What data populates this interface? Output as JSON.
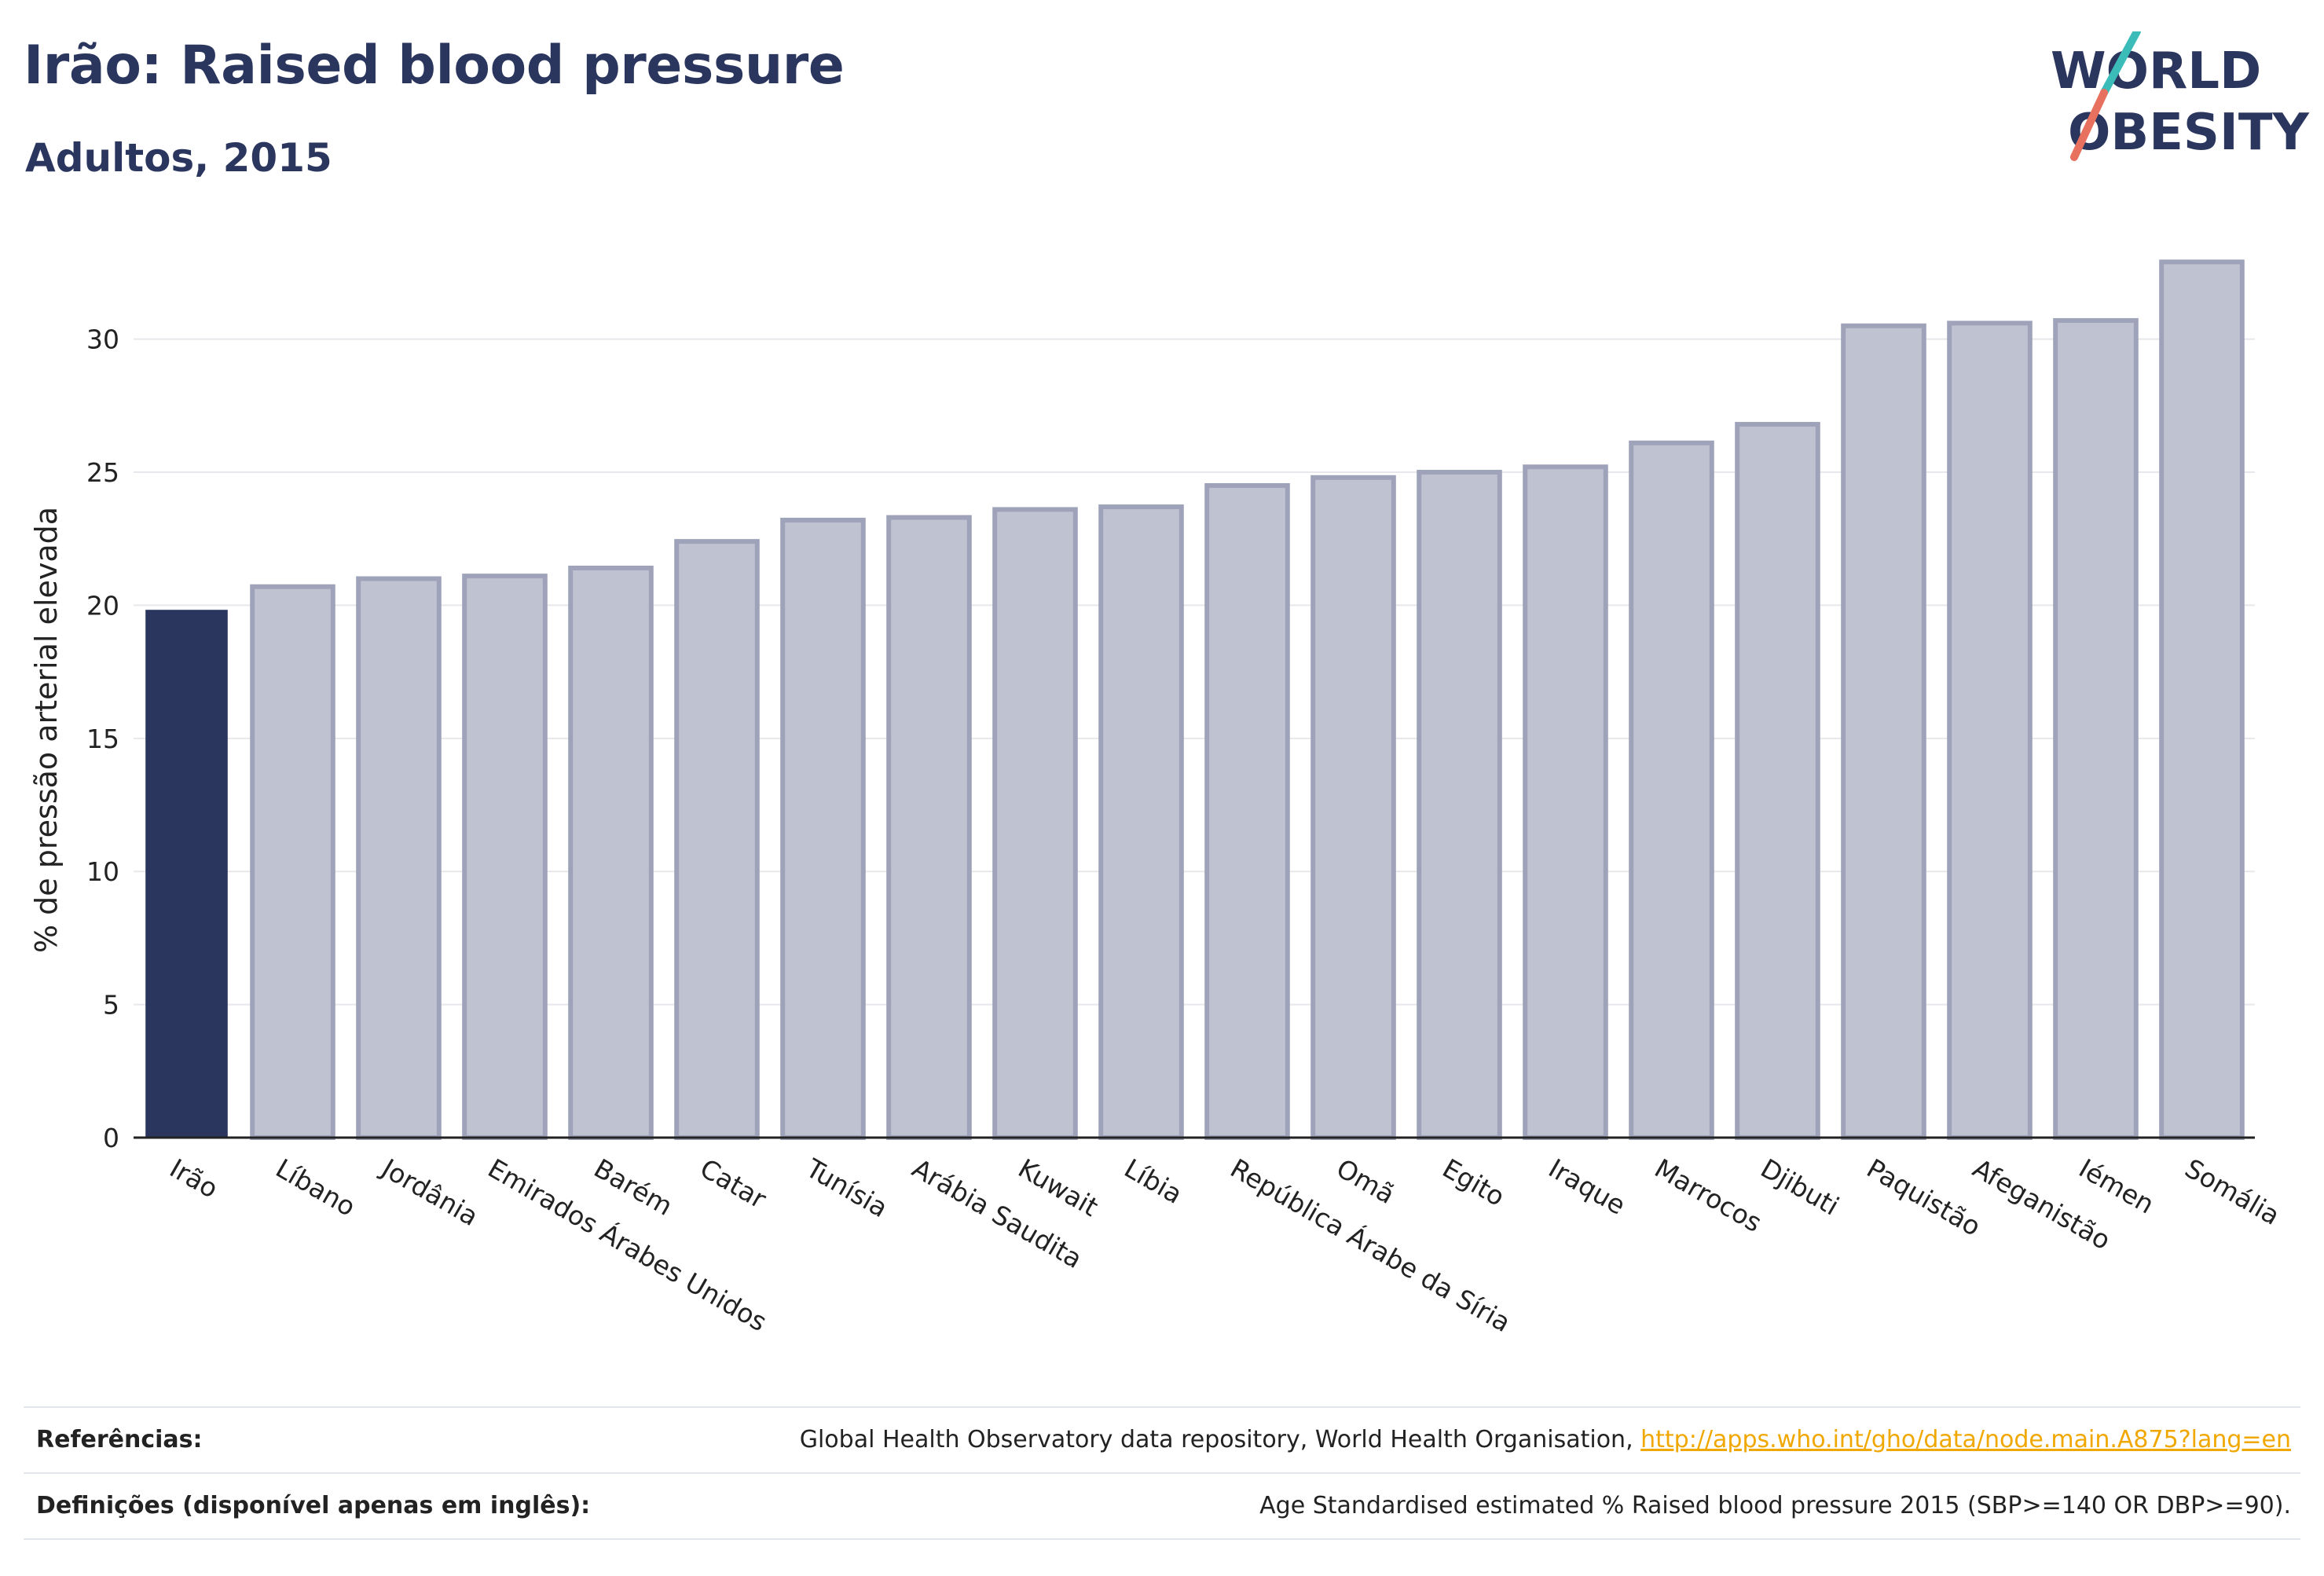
{
  "header": {
    "title": "Irão: Raised blood pressure",
    "subtitle": "Adultos, 2015"
  },
  "logo": {
    "line1": "WORLD",
    "line2": "OBESITY",
    "colors": {
      "text": "#2b365f",
      "slash_top": "#3cbcb8",
      "slash_bottom": "#e8705e"
    }
  },
  "chart_data": {
    "type": "bar",
    "categories": [
      "Irão",
      "Líbano",
      "Jordânia",
      "Emirados Árabes Unidos",
      "Barém",
      "Catar",
      "Tunísia",
      "Arábia Saudita",
      "Kuwait",
      "Líbia",
      "República Árabe da Síria",
      "Omã",
      "Egito",
      "Iraque",
      "Marrocos",
      "Djibuti",
      "Paquistão",
      "Afeganistão",
      "Iémen",
      "Somália"
    ],
    "values": [
      19.8,
      20.7,
      21.0,
      21.1,
      21.4,
      22.4,
      23.2,
      23.3,
      23.6,
      23.7,
      24.5,
      24.8,
      25.0,
      25.2,
      26.1,
      26.8,
      30.5,
      30.6,
      30.7,
      32.9
    ],
    "highlight_index": 0,
    "ylabel": "% de pressão arterial elevada",
    "ylim": [
      0,
      33
    ],
    "yticks": [
      0,
      5,
      10,
      15,
      20,
      25,
      30
    ],
    "grid": true,
    "colors": {
      "highlight": "#2b365f",
      "bar_fill": "#bfc2d0",
      "bar_stroke": "#9ea3ba",
      "grid": "#e8e8ec"
    }
  },
  "footer": {
    "references_label": "Referências:",
    "references_text": "Global Health Observatory data repository, World Health Organisation, ",
    "references_link": "http://apps.who.int/gho/data/node.main.A875?lang=en",
    "definitions_label": "Definições (disponível apenas em inglês):",
    "definitions_text": "Age Standardised estimated % Raised blood pressure 2015 (SBP>=140 OR DBP>=90)."
  }
}
